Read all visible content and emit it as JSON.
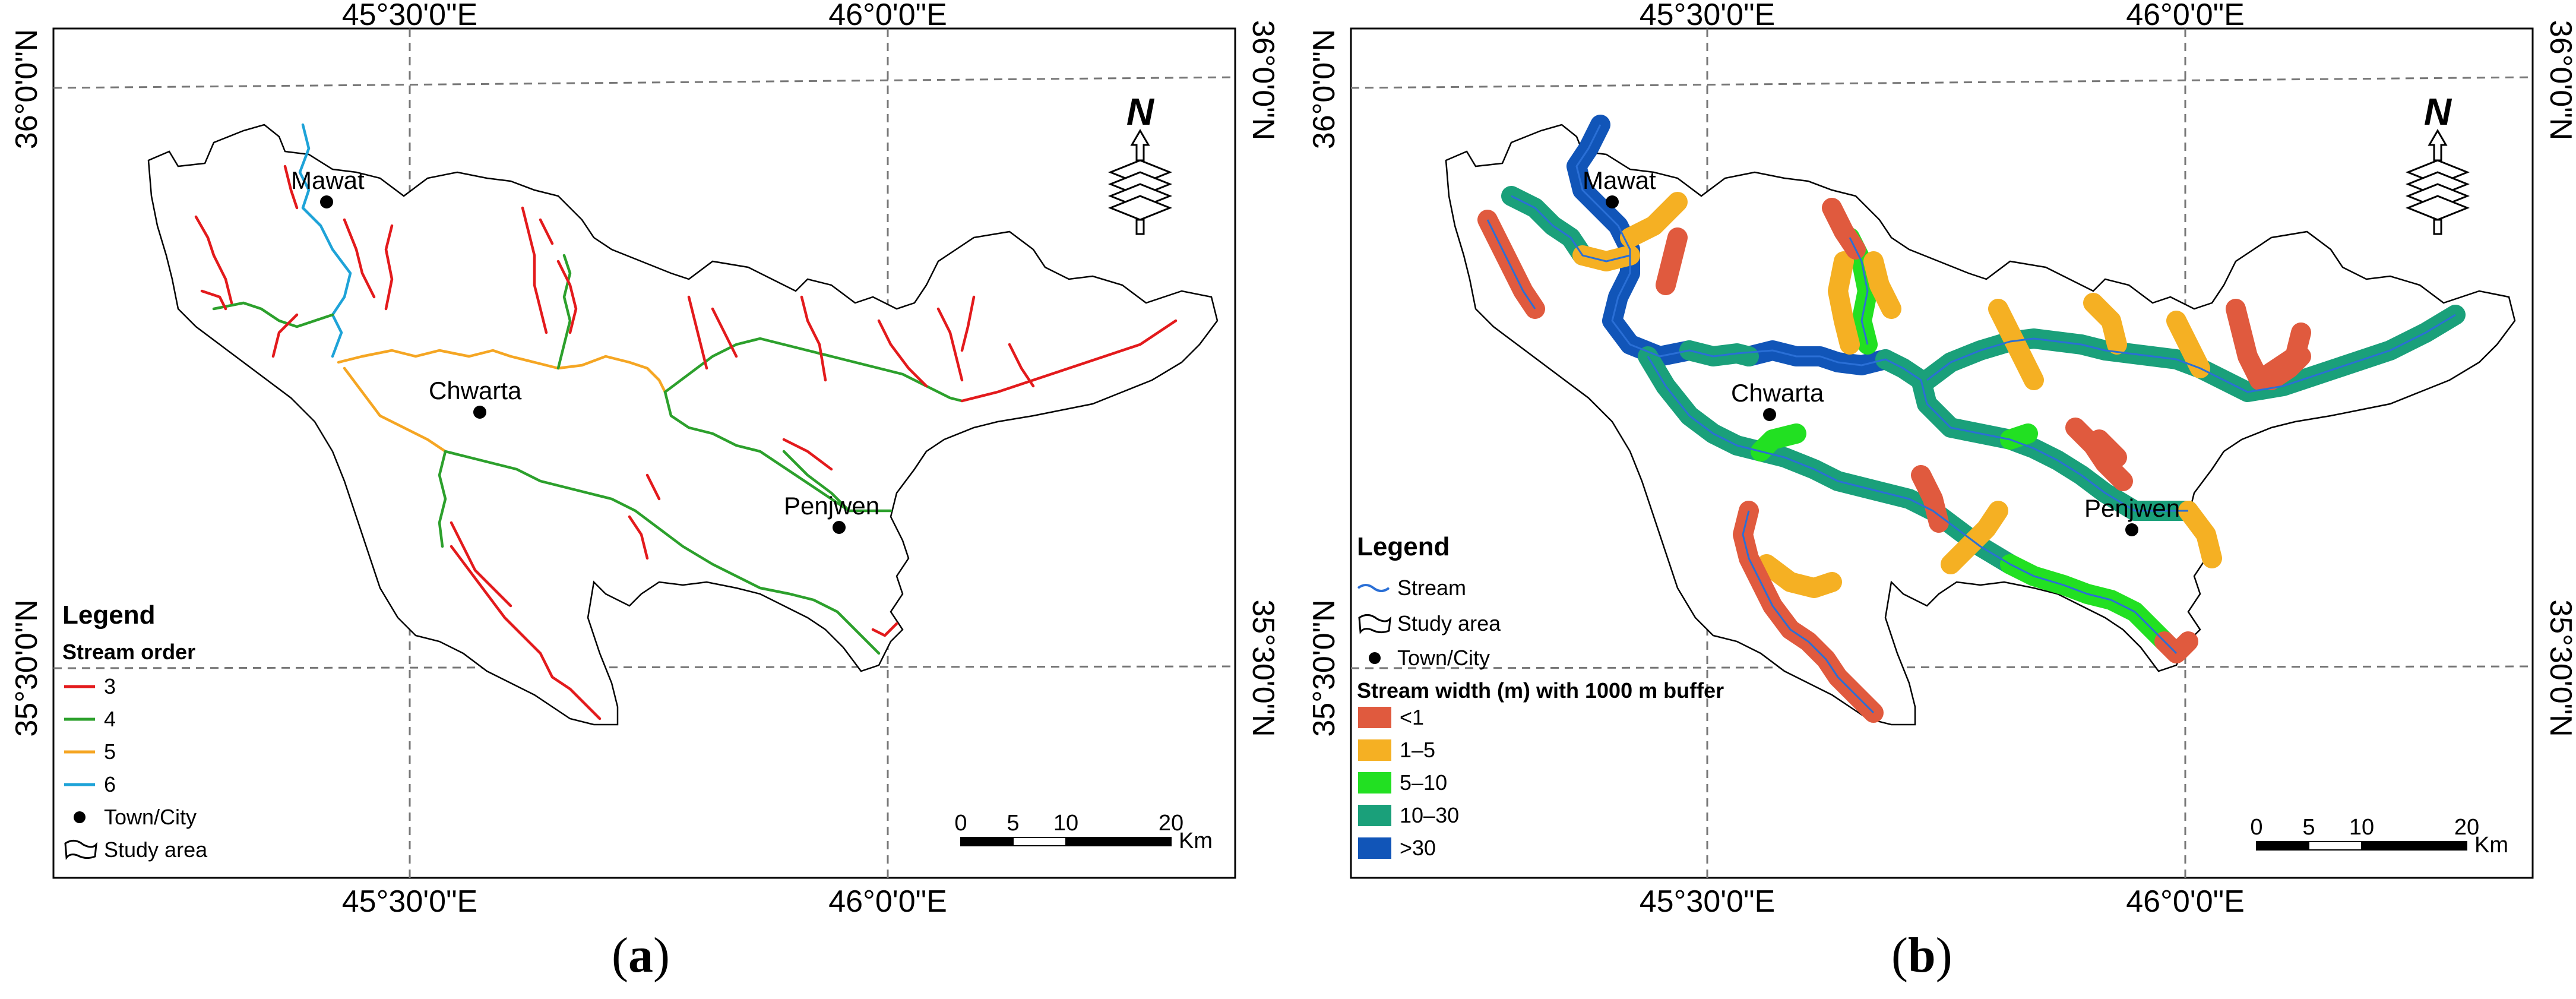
{
  "panels": [
    {
      "id": "a",
      "caption": "a",
      "top_lon_labels": [
        "45°30'0\"E",
        "46°0'0\"E"
      ],
      "bottom_lon_labels": [
        "45°30'0\"E",
        "46°0'0\"E"
      ],
      "left_lat_labels": [
        "36°0'0\"N",
        "35°30'0\"N"
      ],
      "right_lat_labels": [
        "36°0'0\"N",
        "35°30'0\"N"
      ],
      "towns": [
        "Mawat",
        "Chwarta",
        "Penjwen"
      ],
      "north_label": "N",
      "legend": {
        "title": "Legend",
        "subtitle": "Stream order",
        "items": [
          {
            "label": "3",
            "color": "#e31a1c",
            "kind": "line"
          },
          {
            "label": "4",
            "color": "#2ca02c",
            "kind": "line"
          },
          {
            "label": "5",
            "color": "#f5a623",
            "kind": "line"
          },
          {
            "label": "6",
            "color": "#1ea3d8",
            "kind": "line"
          },
          {
            "label": "Town/City",
            "kind": "dot"
          },
          {
            "label": "Study area",
            "kind": "poly"
          }
        ]
      },
      "scale": {
        "ticks": [
          "0",
          "5",
          "10",
          "20"
        ],
        "unit": "Km"
      }
    },
    {
      "id": "b",
      "caption": "b",
      "top_lon_labels": [
        "45°30'0\"E",
        "46°0'0\"E"
      ],
      "bottom_lon_labels": [
        "45°30'0\"E",
        "46°0'0\"E"
      ],
      "left_lat_labels": [
        "36°0'0\"N",
        "35°30'0\"N"
      ],
      "right_lat_labels": [
        "36°0'0\"N",
        "35°30'0\"N"
      ],
      "towns": [
        "Mawat",
        "Chwarta",
        "Penjwen"
      ],
      "north_label": "N",
      "legend": {
        "title": "Legend",
        "items": [
          {
            "label": "Stream",
            "kind": "stream"
          },
          {
            "label": "Study area",
            "kind": "poly"
          },
          {
            "label": "Town/City",
            "kind": "dot"
          }
        ],
        "subtitle": "Stream width (m) with 1000 m buffer",
        "classes": [
          {
            "label": "<1",
            "color": "#e05a3e"
          },
          {
            "label": "1–5",
            "color": "#f5b023"
          },
          {
            "label": "5–10",
            "color": "#22e022"
          },
          {
            "label": "10–30",
            "color": "#1aa07a"
          },
          {
            "label": ">30",
            "color": "#1155b8"
          }
        ]
      },
      "scale": {
        "ticks": [
          "0",
          "5",
          "10",
          "20"
        ],
        "unit": "Km"
      }
    }
  ]
}
